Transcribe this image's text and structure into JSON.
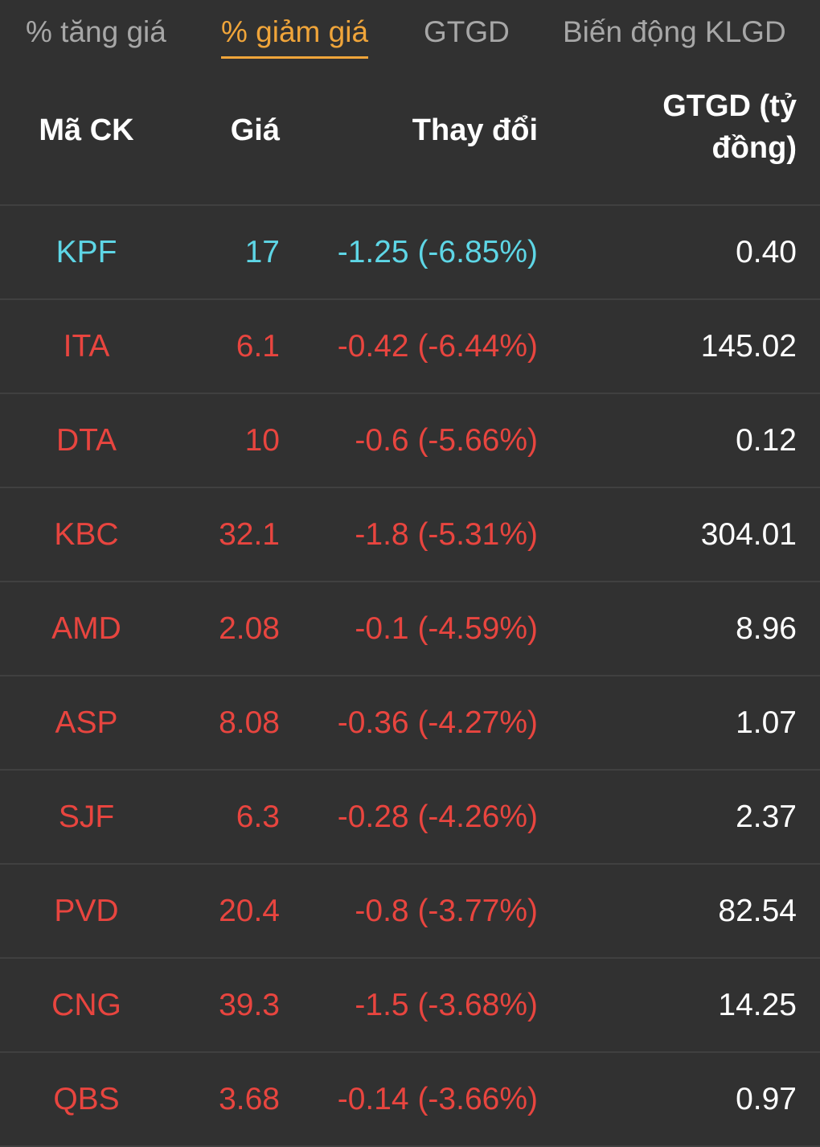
{
  "tabs": [
    {
      "label": "% tăng giá",
      "active": false
    },
    {
      "label": "% giảm giá",
      "active": true
    },
    {
      "label": "GTGD",
      "active": false
    },
    {
      "label": "Biến động KLGD",
      "active": false
    }
  ],
  "columns": {
    "symbol": "Mã CK",
    "price": "Giá",
    "change": "Thay đổi",
    "value": "GTGD (tỷ đồng)"
  },
  "colors": {
    "floor": "#5ed6e6",
    "down": "#e8453f",
    "active_tab": "#f0a53a",
    "tab": "#a7a7a7",
    "background": "#313131"
  },
  "rows": [
    {
      "symbol": "KPF",
      "price": "17",
      "change": "-1.25 (-6.85%)",
      "value": "0.40",
      "status": "floor"
    },
    {
      "symbol": "ITA",
      "price": "6.1",
      "change": "-0.42 (-6.44%)",
      "value": "145.02",
      "status": "down"
    },
    {
      "symbol": "DTA",
      "price": "10",
      "change": "-0.6 (-5.66%)",
      "value": "0.12",
      "status": "down"
    },
    {
      "symbol": "KBC",
      "price": "32.1",
      "change": "-1.8 (-5.31%)",
      "value": "304.01",
      "status": "down"
    },
    {
      "symbol": "AMD",
      "price": "2.08",
      "change": "-0.1 (-4.59%)",
      "value": "8.96",
      "status": "down"
    },
    {
      "symbol": "ASP",
      "price": "8.08",
      "change": "-0.36 (-4.27%)",
      "value": "1.07",
      "status": "down"
    },
    {
      "symbol": "SJF",
      "price": "6.3",
      "change": "-0.28 (-4.26%)",
      "value": "2.37",
      "status": "down"
    },
    {
      "symbol": "PVD",
      "price": "20.4",
      "change": "-0.8 (-3.77%)",
      "value": "82.54",
      "status": "down"
    },
    {
      "symbol": "CNG",
      "price": "39.3",
      "change": "-1.5 (-3.68%)",
      "value": "14.25",
      "status": "down"
    },
    {
      "symbol": "QBS",
      "price": "3.68",
      "change": "-0.14 (-3.66%)",
      "value": "0.97",
      "status": "down"
    }
  ]
}
